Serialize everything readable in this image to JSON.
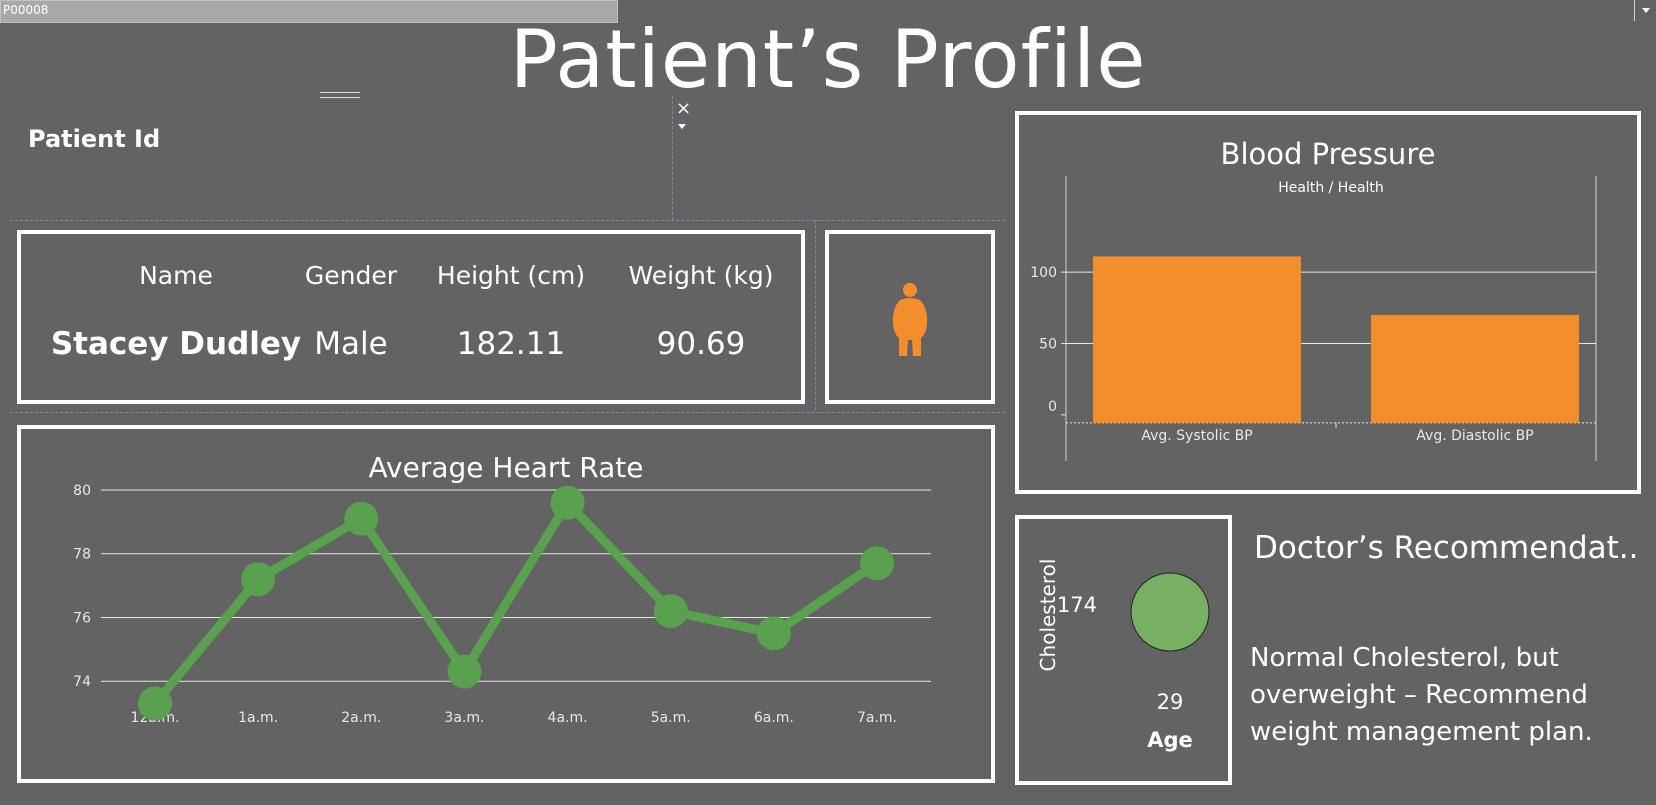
{
  "header": {
    "title": "Patient’s Profile"
  },
  "filter": {
    "label": "Patient Id",
    "value": "P00008",
    "close_glyph": "×"
  },
  "patient": {
    "headers": {
      "name": "Name",
      "gender": "Gender",
      "height": "Height (cm)",
      "weight": "Weight (kg)"
    },
    "values": {
      "name": "Stacey Dudley",
      "gender": "Male",
      "height": "182.11",
      "weight": "90.69"
    },
    "body_icon": "overweight-person-icon",
    "body_icon_color": "#f28e2b"
  },
  "colors": {
    "background": "#636363",
    "orange": "#f28e2b",
    "green": "#59a14f",
    "light_green": "#76b062"
  },
  "heart_rate": {
    "title": "Average Heart Rate",
    "chart_data": {
      "type": "line",
      "title": "Average Heart Rate",
      "x": [
        "12a.m.",
        "1a.m.",
        "2a.m.",
        "3a.m.",
        "4a.m.",
        "5a.m.",
        "6a.m.",
        "7a.m."
      ],
      "y": [
        73.3,
        77.2,
        79.1,
        74.3,
        79.6,
        76.2,
        75.5,
        77.7
      ],
      "yticks": [
        "74",
        "76",
        "78",
        "80"
      ],
      "ylim": [
        72.5,
        80.5
      ],
      "grid": true,
      "color": "#59a14f"
    }
  },
  "blood_pressure": {
    "title": "Blood Pressure",
    "chart_data": {
      "type": "bar",
      "title": "Blood Pressure",
      "subtitle": "Health / Health",
      "categories": [
        "Avg. Systolic BP",
        "Avg. Diastolic BP"
      ],
      "values": [
        111,
        70
      ],
      "yticks": [
        "0",
        "50",
        "100"
      ],
      "ylim": [
        -5,
        140
      ],
      "grid": true,
      "color": "#f28e2b"
    }
  },
  "cholesterol": {
    "axis_label": "Cholesterol",
    "value": "174",
    "age_label": "Age",
    "age_value": "29",
    "bubble_color": "#76b062"
  },
  "recommendation": {
    "title": "Doctor’s Recommendat..",
    "text": "Normal Cholesterol, but overweight – Recommend weight management plan."
  }
}
